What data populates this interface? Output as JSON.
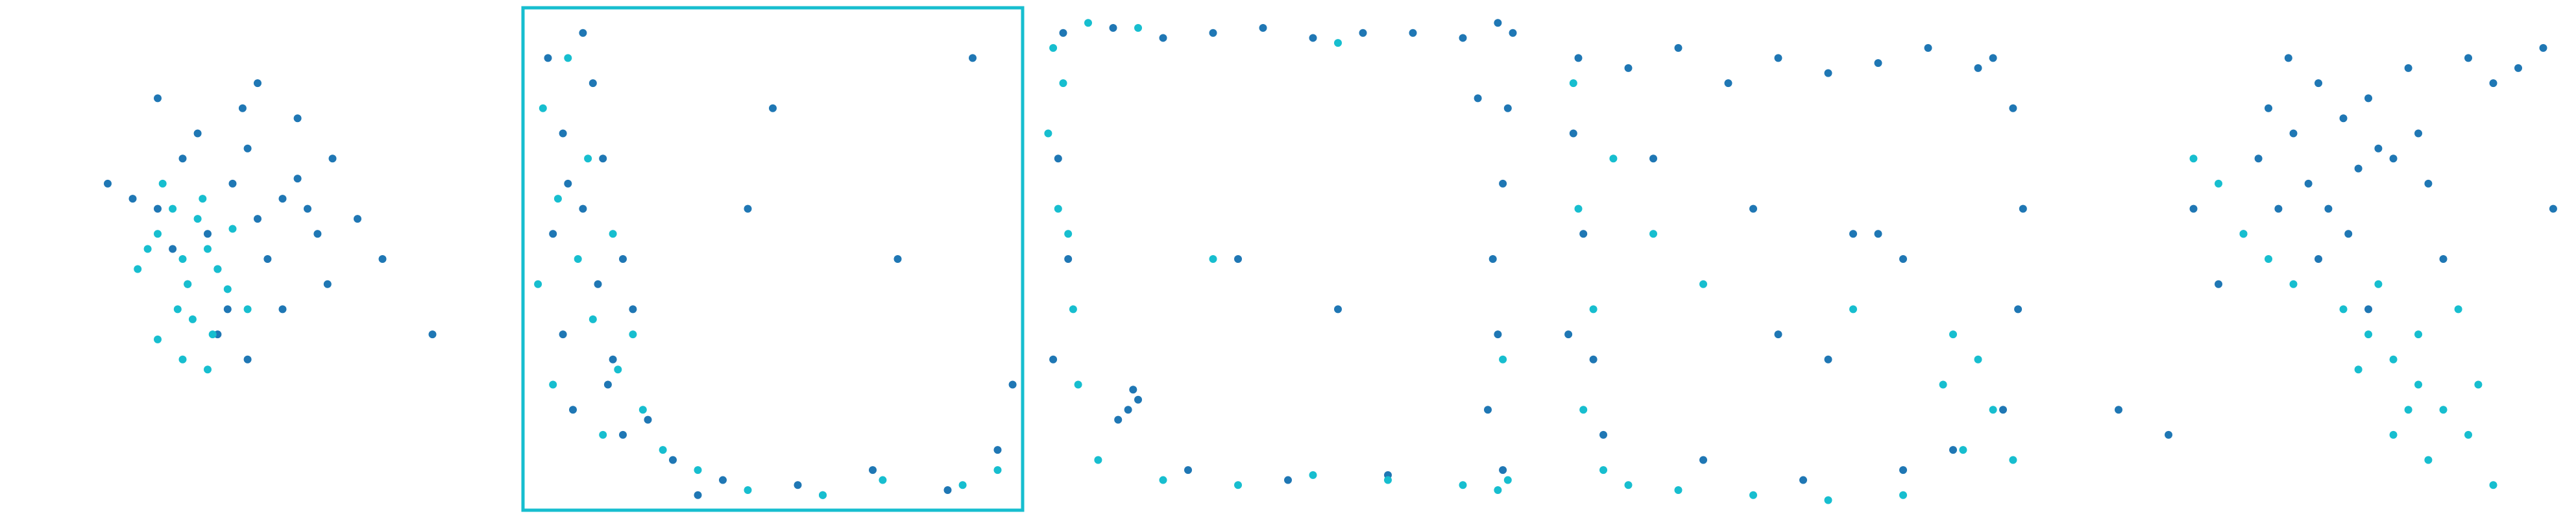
{
  "chart_data": [
    {
      "type": "scatter",
      "xlim": [
        0,
        100
      ],
      "ylim": [
        0,
        100
      ],
      "series": [
        {
          "color": "#1f77b4",
          "x": [
            30,
            35,
            40,
            45,
            50,
            55,
            60,
            38,
            42,
            48,
            52,
            58,
            33,
            47,
            62,
            25,
            65,
            44,
            50,
            36,
            55,
            70,
            20,
            42,
            58,
            75,
            48,
            30,
            64,
            85
          ],
          "values": [
            60,
            70,
            55,
            65,
            58,
            62,
            60,
            75,
            48,
            72,
            50,
            66,
            52,
            80,
            55,
            62,
            70,
            40,
            85,
            45,
            40,
            58,
            65,
            35,
            78,
            50,
            30,
            82,
            45,
            35
          ]
        },
        {
          "color": "#17becf",
          "x": [
            30,
            35,
            38,
            40,
            33,
            42,
            36,
            45,
            28,
            39,
            34,
            44,
            31,
            37,
            41,
            26,
            48,
            35,
            40,
            30
          ],
          "values": [
            55,
            50,
            58,
            52,
            60,
            48,
            45,
            56,
            52,
            62,
            40,
            44,
            65,
            38,
            35,
            48,
            40,
            30,
            28,
            34
          ]
        }
      ]
    },
    {
      "type": "scatter",
      "xlim": [
        0,
        100
      ],
      "ylim": [
        0,
        100
      ],
      "frame": true,
      "series": [
        {
          "color": "#1f77b4",
          "x": [
            5,
            8,
            12,
            15,
            18,
            10,
            20,
            6,
            14,
            22,
            9,
            17,
            25,
            30,
            40,
            55,
            70,
            85,
            95,
            60,
            45,
            12,
            8,
            16,
            50,
            75,
            90,
            35,
            20,
            98
          ],
          "values": [
            90,
            75,
            60,
            45,
            30,
            20,
            15,
            55,
            85,
            40,
            65,
            25,
            18,
            10,
            6,
            5,
            8,
            4,
            12,
            3,
            60,
            95,
            35,
            70,
            80,
            50,
            90,
            3,
            50,
            25
          ]
        },
        {
          "color": "#17becf",
          "x": [
            4,
            7,
            11,
            14,
            19,
            24,
            28,
            9,
            13,
            3,
            18,
            35,
            45,
            60,
            72,
            88,
            95,
            22,
            16,
            6
          ],
          "values": [
            80,
            62,
            50,
            38,
            28,
            20,
            12,
            90,
            70,
            45,
            55,
            8,
            4,
            3,
            6,
            5,
            8,
            35,
            15,
            25
          ]
        }
      ]
    },
    {
      "type": "scatter",
      "xlim": [
        0,
        100
      ],
      "ylim": [
        0,
        100
      ],
      "series": [
        {
          "color": "#1f77b4",
          "x": [
            5,
            15,
            25,
            35,
            45,
            55,
            65,
            75,
            85,
            92,
            94,
            93,
            91,
            92,
            90,
            93,
            4,
            6,
            3,
            18,
            20,
            16,
            19,
            30,
            50,
            70,
            40,
            60,
            88,
            95
          ],
          "values": [
            95,
            96,
            94,
            95,
            96,
            94,
            95,
            95,
            94,
            97,
            80,
            65,
            50,
            35,
            20,
            8,
            70,
            50,
            30,
            20,
            22,
            18,
            24,
            8,
            6,
            7,
            50,
            40,
            82,
            95
          ]
        },
        {
          "color": "#17becf",
          "x": [
            3,
            5,
            4,
            7,
            8,
            12,
            25,
            40,
            55,
            70,
            85,
            92,
            94,
            10,
            20,
            6,
            60,
            35,
            93,
            2
          ],
          "values": [
            92,
            85,
            60,
            40,
            25,
            10,
            6,
            5,
            7,
            6,
            5,
            4,
            6,
            97,
            96,
            55,
            93,
            50,
            30,
            75
          ]
        }
      ]
    },
    {
      "type": "scatter",
      "xlim": [
        0,
        100
      ],
      "ylim": [
        0,
        100
      ],
      "series": [
        {
          "color": "#1f77b4",
          "x": [
            5,
            15,
            25,
            35,
            45,
            55,
            65,
            75,
            85,
            92,
            94,
            93,
            4,
            6,
            3,
            30,
            50,
            70,
            80,
            88,
            60,
            40,
            20,
            45,
            55,
            65,
            10,
            90,
            70,
            8
          ],
          "values": [
            90,
            88,
            92,
            85,
            90,
            87,
            89,
            92,
            88,
            80,
            60,
            40,
            75,
            55,
            35,
            10,
            6,
            8,
            12,
            90,
            55,
            60,
            70,
            35,
            30,
            55,
            15,
            20,
            50,
            30
          ]
        },
        {
          "color": "#17becf",
          "x": [
            5,
            8,
            6,
            10,
            15,
            25,
            40,
            55,
            70,
            82,
            88,
            85,
            92,
            78,
            12,
            60,
            30,
            80,
            20,
            4
          ],
          "values": [
            60,
            40,
            20,
            8,
            5,
            4,
            3,
            2,
            3,
            12,
            20,
            30,
            10,
            25,
            70,
            40,
            45,
            35,
            55,
            85
          ]
        }
      ]
    },
    {
      "type": "scatter",
      "xlim": [
        0,
        100
      ],
      "ylim": [
        0,
        100
      ],
      "series": [
        {
          "color": "#1f77b4",
          "x": [
            40,
            45,
            50,
            55,
            60,
            65,
            70,
            48,
            52,
            58,
            62,
            42,
            38,
            35,
            68,
            72,
            80,
            85,
            90,
            95,
            44,
            56,
            30,
            25,
            75,
            50,
            60,
            10,
            20,
            97
          ],
          "values": [
            80,
            75,
            85,
            78,
            82,
            70,
            75,
            65,
            60,
            68,
            72,
            60,
            70,
            55,
            88,
            65,
            90,
            85,
            88,
            92,
            90,
            55,
            45,
            60,
            50,
            50,
            40,
            20,
            15,
            60
          ]
        },
        {
          "color": "#17becf",
          "x": [
            35,
            40,
            30,
            55,
            60,
            65,
            70,
            75,
            80,
            62,
            68,
            72,
            58,
            85,
            78,
            65,
            70,
            82,
            45,
            25
          ],
          "values": [
            55,
            50,
            65,
            40,
            35,
            30,
            25,
            20,
            15,
            45,
            20,
            10,
            28,
            5,
            40,
            15,
            35,
            25,
            45,
            70
          ]
        }
      ]
    }
  ]
}
